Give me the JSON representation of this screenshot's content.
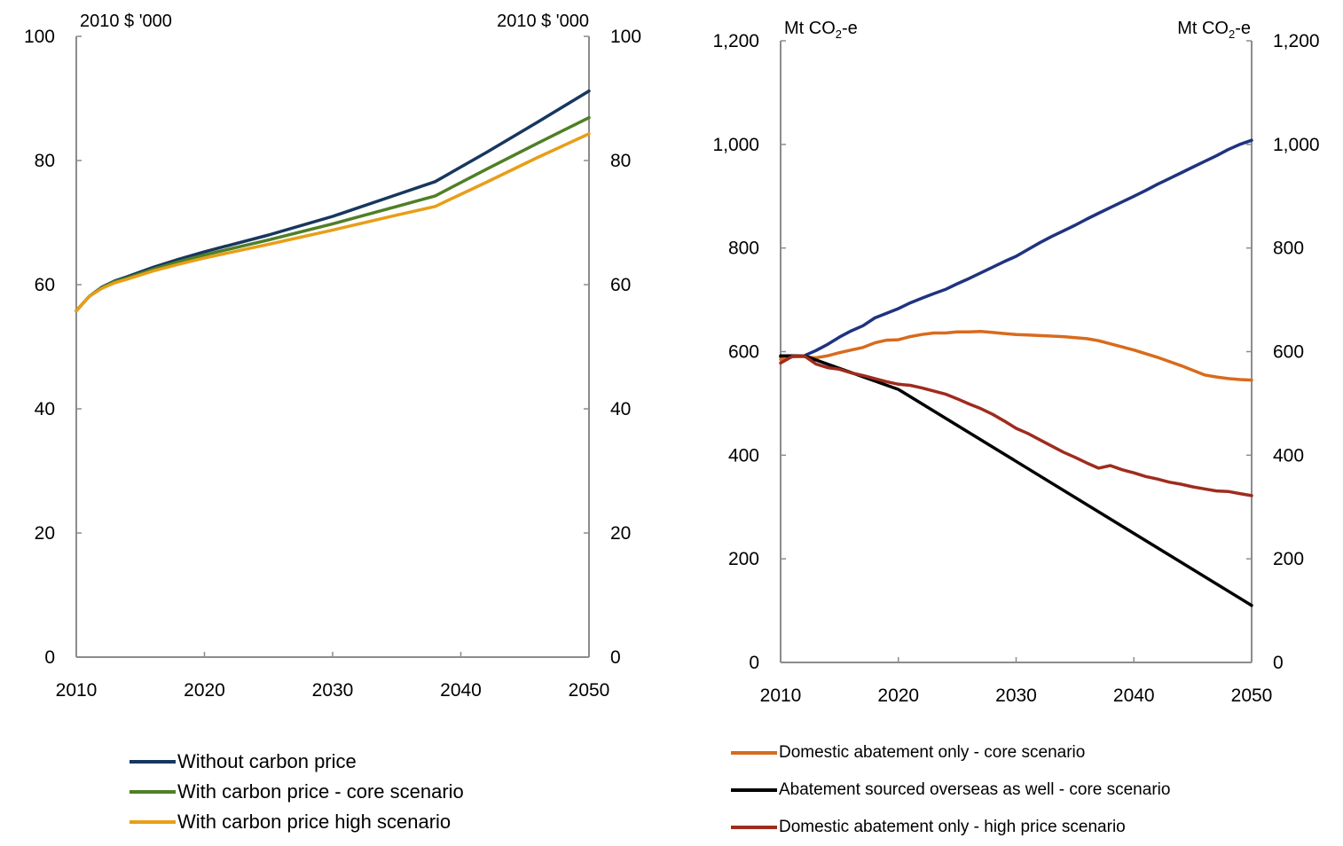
{
  "chart_data": [
    {
      "type": "line",
      "title": "",
      "unit_left": "2010 $ '000",
      "unit_right": "2010 $ '000",
      "x_ticks": [
        "2010",
        "2020",
        "2030",
        "2040",
        "2050"
      ],
      "y_ticks": [
        "0",
        "20",
        "40",
        "60",
        "80",
        "100"
      ],
      "xlim": [
        2010,
        2050
      ],
      "ylim": [
        0,
        100
      ],
      "grid": false,
      "legend_position": "bottom",
      "series": [
        {
          "name": "Without carbon price",
          "color": "#17375e",
          "x": [
            2010,
            2011,
            2012,
            2013,
            2014,
            2016,
            2018,
            2020,
            2025,
            2030,
            2035,
            2038,
            2042,
            2046,
            2050
          ],
          "y": [
            55.8,
            58.1,
            59.6,
            60.6,
            61.3,
            62.8,
            64.1,
            65.3,
            68.0,
            71.0,
            74.5,
            76.6,
            81.3,
            86.2,
            91.2
          ]
        },
        {
          "name": "With carbon price - core scenario",
          "color": "#4f7f26",
          "x": [
            2010,
            2011,
            2012,
            2013,
            2014,
            2016,
            2018,
            2020,
            2025,
            2030,
            2035,
            2038,
            2042,
            2046,
            2050
          ],
          "y": [
            55.8,
            58.1,
            59.5,
            60.5,
            61.1,
            62.5,
            63.7,
            64.8,
            67.2,
            69.8,
            72.6,
            74.3,
            78.6,
            82.8,
            86.9
          ]
        },
        {
          "name": "With carbon price high scenario",
          "color": "#e89e17",
          "x": [
            2010,
            2011,
            2012,
            2013,
            2014,
            2016,
            2018,
            2020,
            2025,
            2030,
            2035,
            2038,
            2042,
            2046,
            2050
          ],
          "y": [
            55.8,
            58.1,
            59.4,
            60.3,
            60.9,
            62.2,
            63.3,
            64.3,
            66.5,
            68.8,
            71.2,
            72.6,
            76.5,
            80.5,
            84.3
          ]
        }
      ]
    },
    {
      "type": "line",
      "title": "",
      "unit_left": "Mt CO2-e",
      "unit_right": "Mt CO2-e",
      "x_ticks": [
        "2010",
        "2020",
        "2030",
        "2040",
        "2050"
      ],
      "y_ticks": [
        "0",
        "200",
        "400",
        "600",
        "800",
        "1,000",
        "1,200"
      ],
      "xlim": [
        2010,
        2050
      ],
      "ylim": [
        0,
        1200
      ],
      "grid": false,
      "legend_position": "bottom",
      "series": [
        {
          "name": "",
          "color": "#1f3380",
          "x": [
            2010,
            2012,
            2013,
            2014,
            2015,
            2016,
            2017,
            2018,
            2019,
            2020,
            2021,
            2022,
            2023,
            2024,
            2025,
            2026,
            2027,
            2028,
            2029,
            2030,
            2031,
            2032,
            2033,
            2034,
            2035,
            2036,
            2037,
            2038,
            2039,
            2040,
            2041,
            2042,
            2043,
            2044,
            2045,
            2046,
            2047,
            2048,
            2049,
            2050
          ],
          "y": [
            590,
            592,
            602,
            614,
            628,
            640,
            650,
            665,
            674,
            683,
            694,
            703,
            712,
            720,
            731,
            741,
            752,
            763,
            774,
            784,
            797,
            810,
            822,
            833,
            844,
            856,
            867,
            878,
            889,
            900,
            911,
            923,
            934,
            945,
            956,
            967,
            978,
            990,
            1000,
            1008
          ]
        },
        {
          "name": "Domestic abatement only - core scenario",
          "color": "#d86b1c",
          "x": [
            2010,
            2011,
            2012,
            2013,
            2014,
            2015,
            2016,
            2017,
            2018,
            2019,
            2020,
            2021,
            2022,
            2023,
            2024,
            2025,
            2026,
            2027,
            2028,
            2029,
            2030,
            2031,
            2032,
            2033,
            2034,
            2035,
            2036,
            2037,
            2038,
            2039,
            2040,
            2041,
            2042,
            2043,
            2044,
            2045,
            2046,
            2047,
            2048,
            2049,
            2050
          ],
          "y": [
            585,
            590,
            590,
            588,
            592,
            598,
            603,
            608,
            617,
            622,
            623,
            629,
            633,
            636,
            636,
            638,
            638,
            639,
            637,
            635,
            633,
            632,
            631,
            630,
            629,
            627,
            625,
            621,
            615,
            609,
            603,
            596,
            589,
            581,
            573,
            564,
            555,
            551,
            548,
            546,
            545
          ]
        },
        {
          "name": "Abatement sourced overseas as well - core scenario",
          "color": "#000000",
          "x": [
            2010,
            2012,
            2020,
            2050
          ],
          "y": [
            592,
            592,
            527,
            110
          ]
        },
        {
          "name": "Domestic abatement only - high price scenario",
          "color": "#9e2c1e",
          "x": [
            2010,
            2011,
            2012,
            2013,
            2014,
            2015,
            2016,
            2017,
            2018,
            2019,
            2020,
            2021,
            2022,
            2023,
            2024,
            2025,
            2026,
            2027,
            2028,
            2029,
            2030,
            2031,
            2032,
            2033,
            2034,
            2035,
            2036,
            2037,
            2038,
            2039,
            2040,
            2041,
            2042,
            2043,
            2044,
            2045,
            2046,
            2047,
            2048,
            2049,
            2050
          ],
          "y": [
            578,
            591,
            592,
            576,
            569,
            566,
            559,
            554,
            548,
            542,
            537,
            535,
            530,
            524,
            518,
            509,
            499,
            490,
            479,
            466,
            452,
            442,
            430,
            418,
            406,
            396,
            385,
            375,
            380,
            372,
            366,
            359,
            354,
            348,
            344,
            339,
            335,
            331,
            330,
            326,
            322
          ]
        }
      ]
    }
  ]
}
